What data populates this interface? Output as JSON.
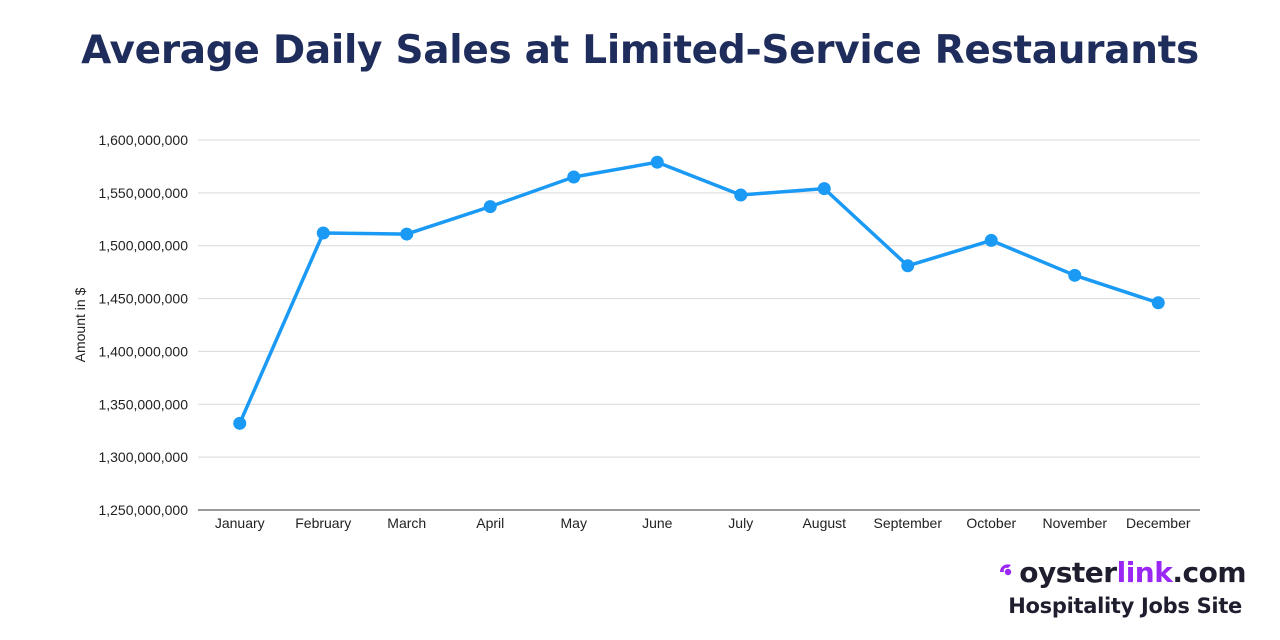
{
  "chart_data": {
    "type": "line",
    "title": "Average Daily Sales at Limited-Service Restaurants",
    "xlabel": "",
    "ylabel": "Amount in $",
    "categories": [
      "January",
      "February",
      "March",
      "April",
      "May",
      "June",
      "July",
      "August",
      "September",
      "October",
      "November",
      "December"
    ],
    "values": [
      1332000000,
      1512000000,
      1511000000,
      1537000000,
      1565000000,
      1579000000,
      1548000000,
      1554000000,
      1481000000,
      1505000000,
      1472000000,
      1446000000
    ],
    "ylim": [
      1250000000,
      1600000000
    ],
    "yticks": [
      1250000000,
      1300000000,
      1350000000,
      1400000000,
      1450000000,
      1500000000,
      1550000000,
      1600000000
    ],
    "ytick_labels": [
      "1,250,000,000",
      "1,300,000,000",
      "1,350,000,000",
      "1,400,000,000",
      "1,450,000,000",
      "1,500,000,000",
      "1,550,000,000",
      "1,600,000,000"
    ],
    "grid": true,
    "legend": "none",
    "line_color": "#1a9af5",
    "grid_color": "#d9d9d9"
  },
  "branding": {
    "logo_part1": "oyster",
    "logo_part2": "link",
    "logo_part3": ".com",
    "tagline": "Hospitality Jobs Site",
    "logo_icon": "oyster-pearl-icon",
    "accent_color": "#9b27f5"
  }
}
